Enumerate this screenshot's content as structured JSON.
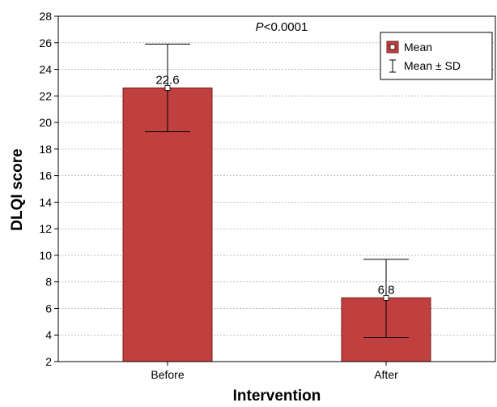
{
  "chart_data": {
    "type": "bar",
    "title": "",
    "xlabel": "Intervention",
    "ylabel": "DLQI score",
    "categories": [
      "Before",
      "After"
    ],
    "series": [
      {
        "name": "Mean",
        "values": [
          22.6,
          6.8
        ],
        "sd_low": [
          19.3,
          3.8
        ],
        "sd_high": [
          25.9,
          9.7
        ],
        "value_labels": [
          "22.6",
          "6.8"
        ]
      }
    ],
    "ylim": [
      2,
      28
    ],
    "yticks": [
      2,
      4,
      6,
      8,
      10,
      12,
      14,
      16,
      18,
      20,
      22,
      24,
      26,
      28
    ],
    "grid": true,
    "legend": {
      "placement": "top-right",
      "entries": [
        {
          "key": "mean",
          "label": "Mean"
        },
        {
          "key": "sd",
          "label": "Mean ± SD"
        }
      ]
    },
    "annotation": {
      "p_symbol": "P",
      "p_rest": "<0.0001"
    },
    "colors": {
      "bar_fill": "#c04040",
      "bar_stroke": "#7a1a1a",
      "grid": "#b0b0b0",
      "axis": "#000000"
    }
  }
}
